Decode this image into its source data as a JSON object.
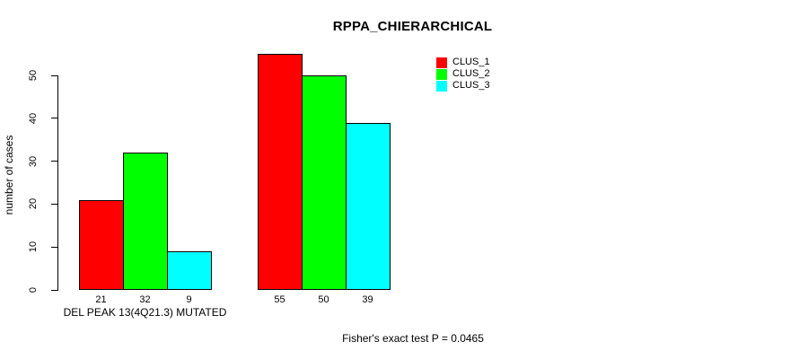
{
  "chart": {
    "title": "RPPA_CHIERARCHICAL",
    "ylabel": "number of cases",
    "xlabel": "DEL PEAK 13(4Q21.3) MUTATED",
    "footnote": "Fisher's exact test P = 0.0465"
  },
  "chart_data": {
    "type": "bar",
    "title": "RPPA_CHIERARCHICAL",
    "ylabel": "number of cases",
    "xlabel": "",
    "categories": [
      "DEL PEAK 13(4Q21.3) MUTATED",
      ""
    ],
    "series": [
      {
        "name": "CLUS_1",
        "color": "#FF0000",
        "values": [
          21,
          55
        ]
      },
      {
        "name": "CLUS_2",
        "color": "#00FF00",
        "values": [
          32,
          50
        ]
      },
      {
        "name": "CLUS_3",
        "color": "#00FFFF",
        "values": [
          9,
          39
        ]
      }
    ],
    "bar_value_labels": [
      [
        21,
        32,
        9
      ],
      [
        55,
        50,
        39
      ]
    ],
    "yticks": [
      0,
      10,
      20,
      30,
      40,
      50
    ],
    "ylim": [
      0,
      55
    ],
    "grid": false,
    "legend": {
      "position": "top-right",
      "entries": [
        "CLUS_1",
        "CLUS_2",
        "CLUS_3"
      ]
    },
    "annotation": "Fisher's exact test P = 0.0465",
    "colors": {
      "bar_border": "#000000",
      "axis": "#000000",
      "background": "#FFFFFF"
    }
  }
}
